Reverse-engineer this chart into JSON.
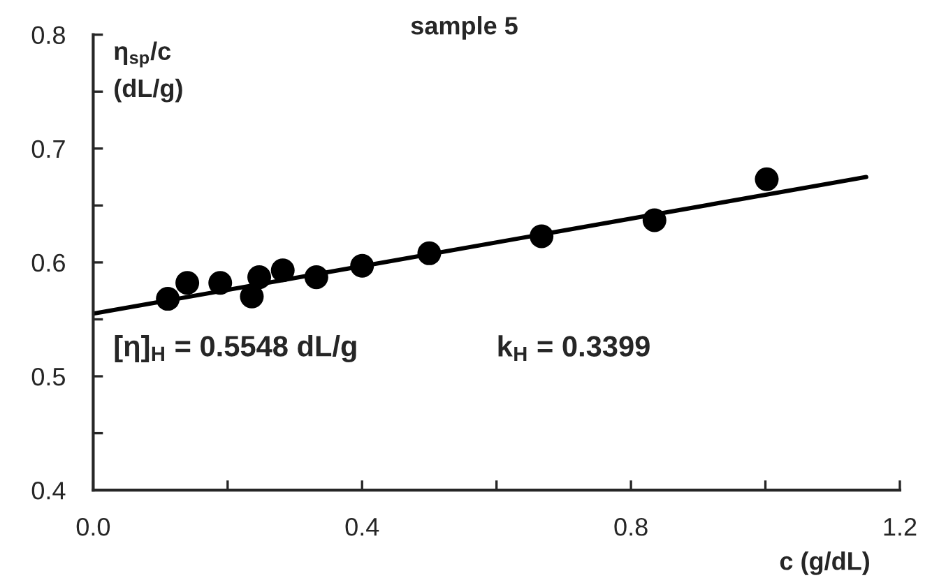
{
  "chart_data": {
    "type": "scatter",
    "title": "sample 5",
    "xlabel": "c (g/dL)",
    "ylabel": "η$_{sp}$/c\n(dL/g)",
    "x": [
      0.111,
      0.14,
      0.189,
      0.236,
      0.247,
      0.282,
      0.332,
      0.4,
      0.5,
      0.667,
      0.835,
      1.002
    ],
    "series": [
      {
        "color": "#000000",
        "values": [
          0.568,
          0.582,
          0.582,
          0.57,
          0.587,
          0.593,
          0.587,
          0.597,
          0.608,
          0.623,
          0.637,
          0.673
        ]
      },
      {
        "type": "line",
        "color": "#000000",
        "x": [
          0,
          1.15
        ],
        "values": [
          0.555,
          0.675
        ],
        "marker": "none"
      }
    ],
    "marker": "circle",
    "annotations": [
      "[η]$_{H}$ = 0.5548 dL/g",
      "k$_{H}$ = 0.3399"
    ],
    "xlim": [
      0,
      1.2
    ],
    "ylim": [
      0.4,
      0.8
    ],
    "xticks": [
      {
        "value": 0,
        "label": "0.0"
      },
      {
        "value": 0.2,
        "label": null
      },
      0.4,
      {
        "value": 0.6,
        "label": null
      },
      0.8,
      {
        "value": 1.0,
        "label": null
      },
      1.2
    ],
    "yticks": [
      0.4,
      {
        "value": 0.45,
        "label": null
      },
      0.5,
      {
        "value": 0.55,
        "label": null
      },
      0.6,
      {
        "value": 0.65,
        "label": null
      },
      0.7,
      {
        "value": 0.75,
        "label": null
      },
      0.8
    ],
    "grid": false,
    "legend": false
  }
}
